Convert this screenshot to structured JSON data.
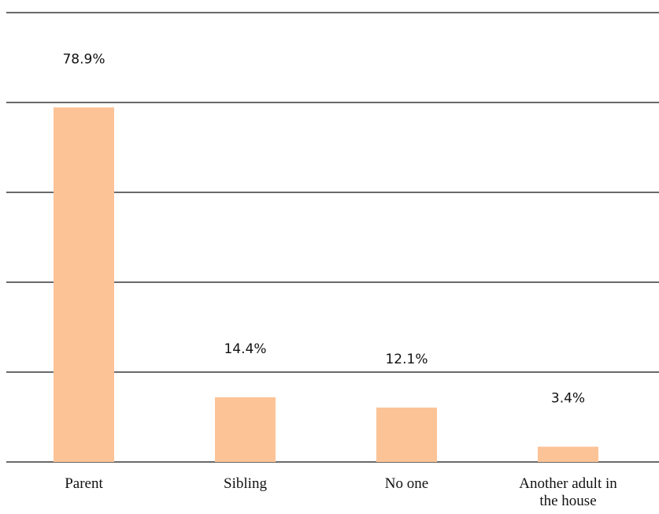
{
  "chart_data": {
    "type": "bar",
    "categories": [
      "Parent",
      "Sibling",
      "No one",
      "Another adult in the house"
    ],
    "values": [
      78.9,
      14.4,
      12.1,
      3.4
    ],
    "value_labels": [
      "78.9%",
      "14.4%",
      "12.1%",
      "3.4%"
    ],
    "color": "#fcc397",
    "ylim": [
      0,
      100
    ],
    "yticks": [
      0,
      20,
      40,
      60,
      80,
      100
    ],
    "grid": true
  }
}
